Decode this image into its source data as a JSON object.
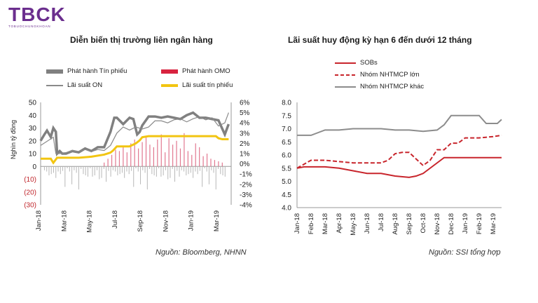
{
  "brand": {
    "logo": "TBCK",
    "tagline": "TOBUOCHUNGKHOAN"
  },
  "chart_data": [
    {
      "type": "bar+line",
      "title": "Diễn biến thị trường liên ngân hàng",
      "ylabel_left": "Nghìn tỷ đồng",
      "source": "Nguồn: Bloomberg, NHNN",
      "left_axis": {
        "ylim": [
          -30,
          50
        ],
        "ticks": [
          "50",
          "40",
          "30",
          "20",
          "10",
          "0",
          "(10)",
          "(20)",
          "(30)"
        ]
      },
      "right_axis": {
        "ylim": [
          -4,
          6
        ],
        "ticks": [
          "6%",
          "5%",
          "4%",
          "3%",
          "2%",
          "1%",
          "0%",
          "-1%",
          "-2%",
          "-3%",
          "-4%"
        ]
      },
      "x_ticks": [
        "Jan-18",
        "Mar-18",
        "May-18",
        "Jul-18",
        "Sep-18",
        "Nov-18",
        "Jan-19",
        "Mar-19"
      ],
      "legend": [
        "Phát hành Tín phiếu",
        "Phát hành OMO",
        "Lãi suất ON",
        "Lãi suất tín phiếu"
      ],
      "series": [
        {
          "name": "Phát hành Tín phiếu",
          "axis": "left",
          "color": "#808080",
          "x": [
            0,
            0.3,
            0.5,
            0.8,
            1.0,
            1.2,
            1.3,
            1.5,
            1.7,
            2,
            2.5,
            3,
            3.5,
            4,
            4.5,
            5,
            5.5,
            5.8,
            6,
            6.5,
            7,
            7.3,
            7.6,
            7.8,
            8,
            8.5,
            9,
            9.5,
            10,
            10.5,
            11,
            11.5,
            12,
            12.5,
            13,
            13.5,
            14,
            14.5,
            14.8
          ],
          "values": [
            20,
            25,
            28,
            23,
            30,
            27,
            10,
            12,
            10,
            10,
            12,
            11,
            14,
            12,
            15,
            15,
            27,
            38,
            38,
            33,
            38,
            37,
            25,
            27,
            32,
            39,
            39,
            38,
            39,
            38,
            37,
            40,
            42,
            38,
            38,
            37,
            36,
            25,
            33
          ]
        },
        {
          "name": "Phát hành OMO",
          "axis": "left",
          "color": "#d84a6a",
          "x": [
            5.0,
            5.3,
            5.6,
            5.9,
            6.2,
            6.5,
            6.8,
            7.1,
            7.4,
            7.7,
            8.0,
            8.3,
            8.6,
            8.9,
            9.2,
            9.5,
            9.8,
            10.1,
            10.4,
            10.7,
            11.0,
            11.3,
            11.6,
            11.9,
            12.2,
            12.5,
            12.8,
            13.1,
            13.4,
            13.7,
            14.0,
            14.3
          ],
          "values": [
            3,
            6,
            9,
            13,
            12,
            16,
            11,
            18,
            21,
            14,
            19,
            23,
            17,
            15,
            21,
            25,
            11,
            22,
            17,
            20,
            14,
            26,
            12,
            9,
            18,
            15,
            8,
            10,
            6,
            5,
            4,
            3
          ]
        },
        {
          "name": "Lãi suất ON",
          "axis": "right",
          "color": "#8a8a8a",
          "x": [
            0,
            0.5,
            1,
            1.2,
            1.5,
            2,
            2.5,
            3,
            3.5,
            4,
            4.5,
            5,
            5.5,
            6,
            6.5,
            7,
            7.5,
            8,
            8.5,
            9,
            9.5,
            10,
            10.5,
            11,
            11.5,
            12,
            12.5,
            13,
            13.5,
            14,
            14.5,
            14.8
          ],
          "values": [
            1.8,
            2.2,
            2.6,
            1.0,
            1.0,
            1.1,
            1.3,
            1.2,
            1.4,
            1.2,
            1.4,
            1.3,
            1.8,
            3.0,
            3.6,
            3.3,
            3.6,
            3.4,
            3.6,
            4.2,
            4.2,
            4.0,
            4.3,
            4.4,
            4.1,
            4.4,
            4.6,
            4.3,
            4.5,
            3.7,
            4.0,
            5.0
          ]
        },
        {
          "name": "Lãi suất tín phiếu",
          "axis": "right",
          "color": "#f2c511",
          "x": [
            0,
            0.8,
            1.0,
            1.3,
            2,
            3,
            4,
            5,
            5.5,
            5.7,
            6,
            7,
            7.5,
            7.8,
            8,
            8.5,
            9,
            10,
            11,
            12,
            13,
            13.5,
            13.8,
            14,
            14.3,
            14.8
          ],
          "values": [
            0.5,
            0.5,
            0.1,
            0.6,
            0.6,
            0.6,
            0.7,
            0.9,
            1.1,
            1.3,
            1.7,
            1.7,
            2.0,
            2.3,
            2.6,
            2.7,
            2.7,
            2.7,
            2.7,
            2.7,
            2.7,
            2.7,
            2.7,
            2.5,
            2.4,
            2.4
          ]
        }
      ]
    },
    {
      "type": "line",
      "title": "Lãi suất huy động kỳ hạn 6 đến dưới 12 tháng",
      "source": "Nguồn: SSI tổng hợp",
      "ylim": [
        4.0,
        8.0
      ],
      "y_ticks": [
        "8.0",
        "7.5",
        "7.0",
        "6.5",
        "6.0",
        "5.5",
        "5.0",
        "4.5",
        "4.0"
      ],
      "x_ticks": [
        "Jan-18",
        "Feb-18",
        "Mar-18",
        "Apr-18",
        "May-18",
        "Jun-18",
        "Jul-18",
        "Aug-18",
        "Sep-18",
        "Oct-18",
        "Nov-18",
        "Dec-18",
        "Jan-19",
        "Feb-19",
        "Mar-19"
      ],
      "series": [
        {
          "name": "SOBs",
          "style": "solid",
          "color": "#c8252c",
          "x": [
            0,
            0.5,
            1,
            2,
            3,
            4,
            5,
            6,
            7,
            8,
            8.5,
            9,
            10,
            10.5,
            11,
            12,
            13,
            14,
            14.6
          ],
          "values": [
            5.5,
            5.55,
            5.55,
            5.55,
            5.5,
            5.4,
            5.3,
            5.3,
            5.2,
            5.15,
            5.2,
            5.3,
            5.7,
            5.9,
            5.9,
            5.9,
            5.9,
            5.9,
            5.9
          ]
        },
        {
          "name": "Nhóm NHTMCP lớn",
          "style": "dashed",
          "color": "#c8252c",
          "x": [
            0,
            1,
            2,
            3,
            4,
            5,
            6,
            6.5,
            7,
            7.5,
            8,
            8.5,
            9,
            9.5,
            10,
            10.5,
            11,
            11.5,
            12,
            13,
            14,
            14.6
          ],
          "values": [
            5.5,
            5.8,
            5.8,
            5.75,
            5.7,
            5.7,
            5.7,
            5.8,
            6.05,
            6.1,
            6.1,
            5.85,
            5.6,
            5.8,
            6.2,
            6.2,
            6.45,
            6.45,
            6.65,
            6.65,
            6.7,
            6.75
          ]
        },
        {
          "name": "Nhóm NHTMCP khác",
          "style": "solid",
          "color": "#8c8c8c",
          "x": [
            0,
            1,
            1.5,
            2,
            3,
            4,
            5,
            6,
            7,
            8,
            9,
            10,
            10.5,
            11,
            11.5,
            12,
            12.5,
            13,
            13.5,
            14,
            14.3,
            14.6
          ],
          "values": [
            6.75,
            6.75,
            6.85,
            6.95,
            6.95,
            7.0,
            7.0,
            7.0,
            6.95,
            6.95,
            6.9,
            6.95,
            7.15,
            7.5,
            7.5,
            7.5,
            7.5,
            7.5,
            7.2,
            7.2,
            7.2,
            7.35
          ]
        }
      ]
    }
  ]
}
